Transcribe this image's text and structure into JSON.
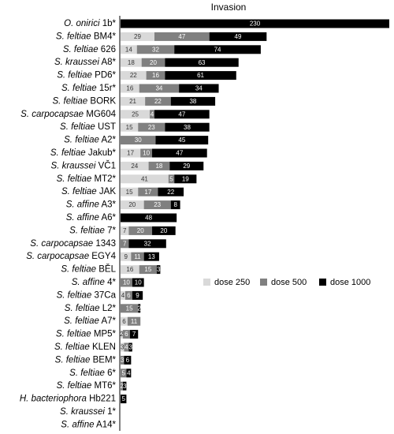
{
  "chart_data": {
    "type": "stacked-bar-horizontal",
    "title": "Invasion",
    "categories": [
      "O. onirici 1b*",
      "S. feltiae BM4*",
      "S. feltiae 626",
      "S. kraussei A8*",
      "S. feltiae PD6*",
      "S. feltiae 15r*",
      "S. feltiae BORK",
      "S. carpocapsae MG604",
      "S. feltiae UST",
      "S. feltiae A2*",
      "S. feltiae Jakub*",
      "S. kraussei VČ1",
      "S. feltiae MT2*",
      "S. feltiae JAK",
      "S. affine A3*",
      "S. affine A6*",
      "S. feltiae 7*",
      "S. carpocapsae 1343",
      "S. carpocapsae EGY4",
      "S. feltiae BĚL",
      "S. affine 4*",
      "S. feltiae 37Ca",
      "S. feltiae L2*",
      "S. feltiae A7*",
      "S. feltiae MP5*",
      "S. feltiae KLEN",
      "S. feltiae BEM*",
      "S. feltiae 6*",
      "S. feltiae MT6*",
      "H. bacteriophora Hb221",
      "S. kraussei 1*",
      "S. affine A14*"
    ],
    "series": [
      {
        "name": "dose 250",
        "color": "#d9d9d9",
        "values": [
          null,
          29,
          14,
          18,
          22,
          16,
          21,
          25,
          15,
          null,
          17,
          24,
          41,
          15,
          20,
          null,
          7,
          null,
          9,
          16,
          null,
          4,
          null,
          6,
          2,
          3,
          null,
          null,
          null,
          null,
          null,
          null
        ]
      },
      {
        "name": "dose 500",
        "color": "#808080",
        "values": [
          null,
          47,
          32,
          20,
          16,
          34,
          22,
          4,
          23,
          30,
          10,
          18,
          5,
          17,
          23,
          null,
          20,
          7,
          11,
          15,
          10,
          6,
          15,
          11,
          6,
          4,
          3,
          5,
          2,
          null,
          null,
          null
        ]
      },
      {
        "name": "dose 1000",
        "color": "#000000",
        "values": [
          230,
          49,
          74,
          63,
          61,
          34,
          38,
          47,
          38,
          45,
          47,
          29,
          19,
          22,
          8,
          48,
          20,
          32,
          13,
          3,
          10,
          9,
          2,
          null,
          7,
          3,
          6,
          4,
          3,
          5,
          null,
          null
        ]
      }
    ]
  }
}
